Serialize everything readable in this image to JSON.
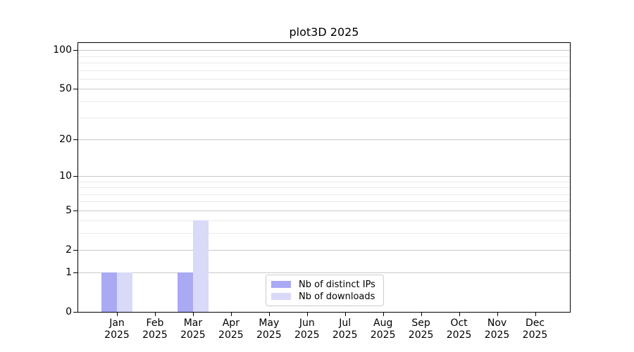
{
  "chart_data": {
    "type": "bar",
    "title": "plot3D 2025",
    "categories": [
      "Jan",
      "Feb",
      "Mar",
      "Apr",
      "May",
      "Jun",
      "Jul",
      "Aug",
      "Sep",
      "Oct",
      "Nov",
      "Dec"
    ],
    "year": "2025",
    "series": [
      {
        "name": "Nb of distinct IPs",
        "color": "#a9a9f4",
        "values": [
          1,
          0,
          1,
          0,
          0,
          0,
          0,
          0,
          0,
          0,
          0,
          0
        ]
      },
      {
        "name": "Nb of downloads",
        "color": "#d9d9f8",
        "values": [
          1,
          0,
          4,
          0,
          0,
          0,
          0,
          0,
          0,
          0,
          0,
          0
        ]
      }
    ],
    "y_scale": "log1p",
    "y_axis_ticks": [
      0,
      1,
      2,
      5,
      10,
      20,
      50,
      100
    ],
    "y_minor_gridlines": [
      3,
      4,
      6,
      7,
      8,
      9,
      30,
      40,
      60,
      70,
      80,
      90
    ],
    "y_top_value": 114,
    "xlabel": "",
    "ylabel": "",
    "grid": true,
    "legend_position": "lower center",
    "colors": {
      "major_grid": "#c9c9c9",
      "minor_grid": "#eaeaea",
      "axis": "#000000",
      "legend_border": "#cccccc",
      "background": "#ffffff",
      "text": "#000000"
    }
  }
}
